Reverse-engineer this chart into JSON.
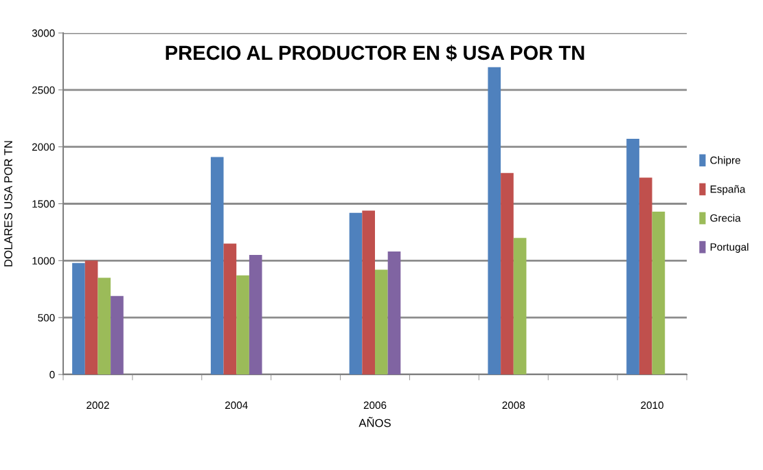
{
  "chart_data": {
    "type": "bar",
    "title": "PRECIO AL PRODUCTOR EN $ USA POR TN",
    "xlabel": "AÑOS",
    "ylabel": "DOLARES USA POR TN",
    "categories": [
      "2002",
      null,
      "2004",
      null,
      "2006",
      null,
      "2008",
      null,
      "2010"
    ],
    "series": [
      {
        "name": "Chipre",
        "color": "#4f81bd",
        "values": [
          980,
          null,
          1910,
          null,
          1420,
          null,
          2700,
          null,
          2070
        ]
      },
      {
        "name": "España",
        "color": "#c0504d",
        "values": [
          1000,
          null,
          1150,
          null,
          1440,
          null,
          1770,
          null,
          1730
        ]
      },
      {
        "name": "Grecia",
        "color": "#9bbb59",
        "values": [
          850,
          null,
          870,
          null,
          920,
          null,
          1200,
          null,
          1430
        ]
      },
      {
        "name": "Portugal",
        "color": "#8064a2",
        "values": [
          690,
          null,
          1050,
          null,
          1080,
          null,
          null,
          null,
          null
        ]
      }
    ],
    "ylim": [
      0,
      3000
    ],
    "yticks": [
      0,
      500,
      1000,
      1500,
      2000,
      2500,
      3000
    ],
    "grid": "y",
    "legend": "right"
  }
}
